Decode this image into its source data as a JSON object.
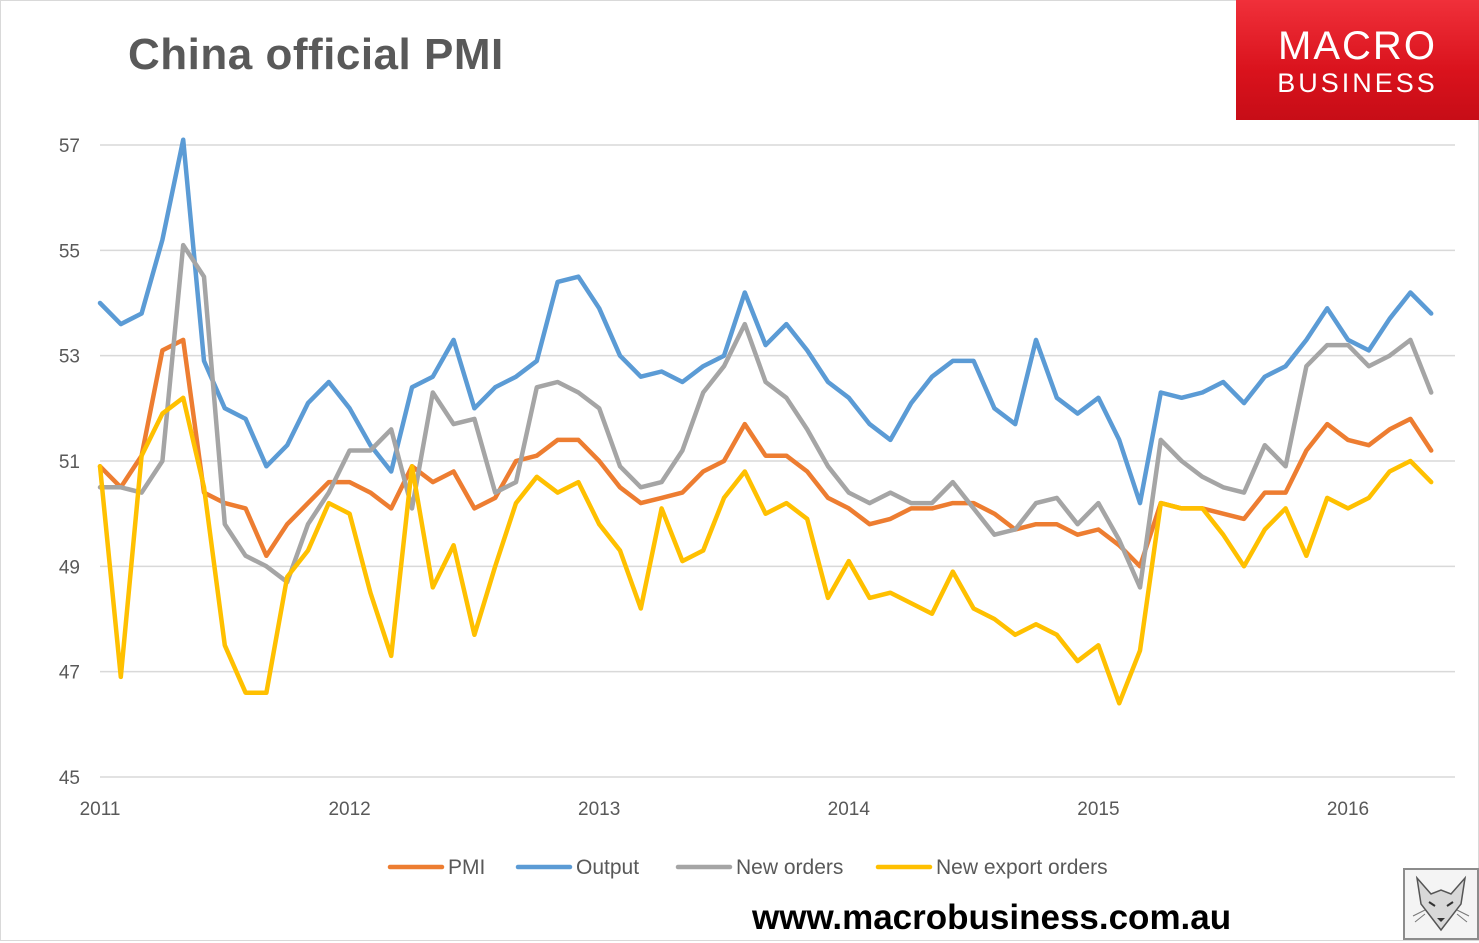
{
  "chart_data": {
    "type": "line",
    "title": "China official PMI",
    "ylim": [
      45,
      57
    ],
    "yticks": [
      45,
      47,
      49,
      51,
      53,
      55,
      57
    ],
    "x_start": "2011-01",
    "xticks": [
      "2011",
      "2012",
      "2013",
      "2014",
      "2015",
      "2016"
    ],
    "grid": true,
    "legend_position": "bottom",
    "series": [
      {
        "name": "PMI",
        "color": "#ed7d31",
        "values": [
          50.9,
          50.5,
          51.1,
          53.1,
          53.3,
          50.4,
          50.2,
          50.1,
          49.2,
          49.8,
          50.2,
          50.6,
          50.6,
          50.4,
          50.1,
          50.9,
          50.6,
          50.8,
          50.1,
          50.3,
          51.0,
          51.1,
          51.4,
          51.4,
          51.0,
          50.5,
          50.2,
          50.3,
          50.4,
          50.8,
          51.0,
          51.7,
          51.1,
          51.1,
          50.8,
          50.3,
          50.1,
          49.8,
          49.9,
          50.1,
          50.1,
          50.2,
          50.2,
          50.0,
          49.7,
          49.8,
          49.8,
          49.6,
          49.7,
          49.4,
          49.0,
          50.2,
          50.1,
          50.1,
          50.0,
          49.9,
          50.4,
          50.4,
          51.2,
          51.7,
          51.4,
          51.3,
          51.6,
          51.8,
          51.2
        ]
      },
      {
        "name": "Output",
        "color": "#5b9bd5",
        "values": [
          54.0,
          53.6,
          53.8,
          55.2,
          57.1,
          52.9,
          52.0,
          51.8,
          50.9,
          51.3,
          52.1,
          52.5,
          52.0,
          51.3,
          50.8,
          52.4,
          52.6,
          53.3,
          52.0,
          52.4,
          52.6,
          52.9,
          54.4,
          54.5,
          53.9,
          53.0,
          52.6,
          52.7,
          52.5,
          52.8,
          53.0,
          54.2,
          53.2,
          53.6,
          53.1,
          52.5,
          52.2,
          51.7,
          51.4,
          52.1,
          52.6,
          52.9,
          52.9,
          52.0,
          51.7,
          53.3,
          52.2,
          51.9,
          52.2,
          51.4,
          50.2,
          52.3,
          52.2,
          52.3,
          52.5,
          52.1,
          52.6,
          52.8,
          53.3,
          53.9,
          53.3,
          53.1,
          53.7,
          54.2,
          53.8
        ]
      },
      {
        "name": "New orders",
        "color": "#a5a5a5",
        "values": [
          50.5,
          50.5,
          50.4,
          51.0,
          55.1,
          54.5,
          49.8,
          49.2,
          49.0,
          48.7,
          49.8,
          50.4,
          51.2,
          51.2,
          51.6,
          50.1,
          52.3,
          51.7,
          51.8,
          50.4,
          50.6,
          52.4,
          52.5,
          52.3,
          52.0,
          50.9,
          50.5,
          50.6,
          51.2,
          52.3,
          52.8,
          53.6,
          52.5,
          52.2,
          51.6,
          50.9,
          50.4,
          50.2,
          50.4,
          50.2,
          50.2,
          50.6,
          50.1,
          49.6,
          49.7,
          50.2,
          50.3,
          49.8,
          50.2,
          49.5,
          48.6,
          51.4,
          51.0,
          50.7,
          50.5,
          50.4,
          51.3,
          50.9,
          52.8,
          53.2,
          53.2,
          52.8,
          53.0,
          53.3,
          52.3
        ]
      },
      {
        "name": "New export orders",
        "color": "#ffc000",
        "values": [
          50.9,
          46.9,
          51.1,
          51.9,
          52.2,
          50.5,
          47.5,
          46.6,
          46.6,
          48.8,
          49.3,
          50.2,
          50.0,
          48.5,
          47.3,
          50.9,
          48.6,
          49.4,
          47.7,
          49.0,
          50.2,
          50.7,
          50.4,
          50.6,
          49.8,
          49.3,
          48.2,
          50.1,
          49.1,
          49.3,
          50.3,
          50.8,
          50.0,
          50.2,
          49.9,
          48.4,
          49.1,
          48.4,
          48.5,
          48.3,
          48.1,
          48.9,
          48.2,
          48.0,
          47.7,
          47.9,
          47.7,
          47.2,
          47.5,
          46.4,
          47.4,
          50.2,
          50.1,
          50.1,
          49.6,
          49.0,
          49.7,
          50.1,
          49.2,
          50.3,
          50.1,
          50.3,
          50.8,
          51.0,
          50.6
        ]
      }
    ]
  },
  "logo": {
    "line1": "MACRO",
    "line2": "BUSINESS"
  },
  "footer": {
    "url": "www.macrobusiness.com.au"
  }
}
